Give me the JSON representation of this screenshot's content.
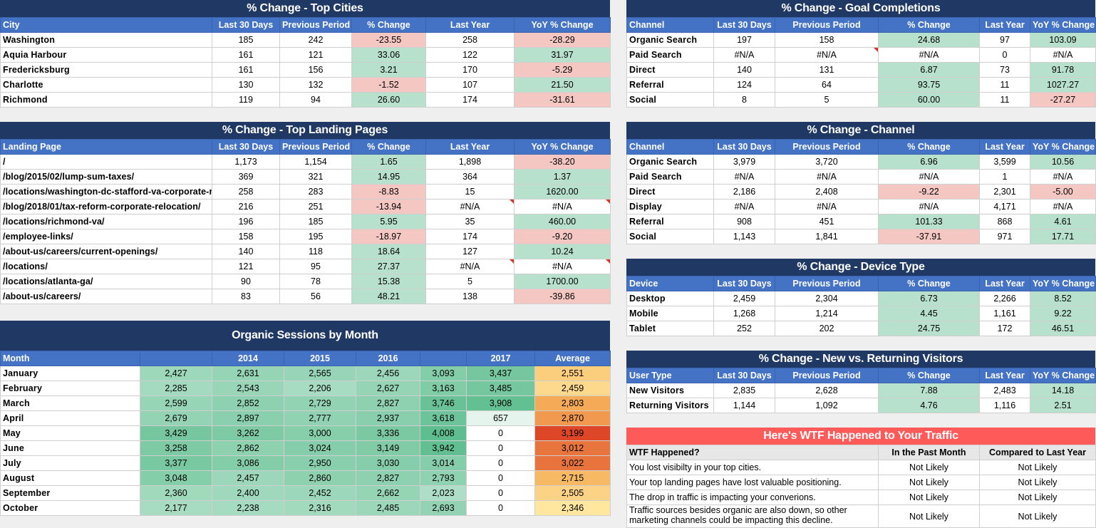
{
  "cities": {
    "title": "% Change - Top Cities",
    "headers": [
      "City",
      "Last 30 Days",
      "Previous Period",
      "% Change",
      "Last Year",
      "YoY % Change"
    ],
    "rows": [
      [
        "Washington",
        "185",
        "242",
        "-23.55",
        "258",
        "-28.29"
      ],
      [
        "Aquia Harbour",
        "161",
        "121",
        "33.06",
        "122",
        "31.97"
      ],
      [
        "Fredericksburg",
        "161",
        "156",
        "3.21",
        "170",
        "-5.29"
      ],
      [
        "Charlotte",
        "130",
        "132",
        "-1.52",
        "107",
        "21.50"
      ],
      [
        "Richmond",
        "119",
        "94",
        "26.60",
        "174",
        "-31.61"
      ]
    ]
  },
  "landing": {
    "title": "% Change - Top Landing Pages",
    "headers": [
      "Landing Page",
      "Last 30 Days",
      "Previous Period",
      "% Change",
      "Last Year",
      "YoY % Change"
    ],
    "rows": [
      [
        "/",
        "1,173",
        "1,154",
        "1.65",
        "1,898",
        "-38.20"
      ],
      [
        "/blog/2015/02/lump-sum-taxes/",
        "369",
        "321",
        "14.95",
        "364",
        "1.37"
      ],
      [
        "/locations/washington-dc-stafford-va-corporate-relocation/",
        "258",
        "283",
        "-8.83",
        "15",
        "1620.00"
      ],
      [
        "/blog/2018/01/tax-reform-corporate-relocation/",
        "216",
        "251",
        "-13.94",
        "#N/A",
        "#N/A"
      ],
      [
        "/locations/richmond-va/",
        "196",
        "185",
        "5.95",
        "35",
        "460.00"
      ],
      [
        "/employee-links/",
        "158",
        "195",
        "-18.97",
        "174",
        "-9.20"
      ],
      [
        "/about-us/careers/current-openings/",
        "140",
        "118",
        "18.64",
        "127",
        "10.24"
      ],
      [
        "/locations/",
        "121",
        "95",
        "27.37",
        "#N/A",
        "#N/A"
      ],
      [
        "/locations/atlanta-ga/",
        "90",
        "78",
        "15.38",
        "5",
        "1700.00"
      ],
      [
        "/about-us/careers/",
        "83",
        "56",
        "48.21",
        "138",
        "-39.86"
      ]
    ]
  },
  "sessions": {
    "title": "Organic Sessions by Month",
    "headers": [
      "Month",
      "",
      "2014",
      "2015",
      "2016",
      "",
      "2017",
      "Average"
    ],
    "rows": [
      [
        "January",
        "2,427",
        "2,631",
        "2,565",
        "2,456",
        "3,093",
        "3,437",
        "2,551"
      ],
      [
        "February",
        "2,285",
        "2,543",
        "2,206",
        "2,627",
        "3,163",
        "3,485",
        "2,459"
      ],
      [
        "March",
        "2,599",
        "2,852",
        "2,729",
        "2,827",
        "3,746",
        "3,908",
        "2,803"
      ],
      [
        "April",
        "2,679",
        "2,897",
        "2,777",
        "2,937",
        "3,618",
        "657",
        "2,870"
      ],
      [
        "May",
        "3,429",
        "3,262",
        "3,000",
        "3,336",
        "4,008",
        "0",
        "3,199"
      ],
      [
        "June",
        "3,258",
        "2,862",
        "3,024",
        "3,149",
        "3,942",
        "0",
        "3,012"
      ],
      [
        "July",
        "3,377",
        "3,086",
        "2,950",
        "3,030",
        "3,014",
        "0",
        "3,022"
      ],
      [
        "August",
        "3,048",
        "2,457",
        "2,860",
        "2,827",
        "2,793",
        "0",
        "2,715"
      ],
      [
        "September",
        "2,360",
        "2,400",
        "2,452",
        "2,662",
        "2,023",
        "0",
        "2,505"
      ],
      [
        "October",
        "2,177",
        "2,238",
        "2,316",
        "2,485",
        "2,693",
        "0",
        "2,346"
      ]
    ]
  },
  "goals": {
    "title": "% Change - Goal Completions",
    "headers": [
      "Channel",
      "Last 30 Days",
      "Previous Period",
      "% Change",
      "Last Year",
      "YoY % Change"
    ],
    "rows": [
      [
        "Organic Search",
        "197",
        "158",
        "24.68",
        "97",
        "103.09"
      ],
      [
        "Paid Search",
        "#N/A",
        "#N/A",
        "#N/A",
        "0",
        "#N/A"
      ],
      [
        "Direct",
        "140",
        "131",
        "6.87",
        "73",
        "91.78"
      ],
      [
        "Referral",
        "124",
        "64",
        "93.75",
        "11",
        "1027.27"
      ],
      [
        "Social",
        "8",
        "5",
        "60.00",
        "11",
        "-27.27"
      ]
    ]
  },
  "channel": {
    "title": "% Change - Channel",
    "headers": [
      "Channel",
      "Last 30 Days",
      "Previous Period",
      "% Change",
      "Last Year",
      "YoY % Change"
    ],
    "rows": [
      [
        "Organic Search",
        "3,979",
        "3,720",
        "6.96",
        "3,599",
        "10.56"
      ],
      [
        "Paid Search",
        "#N/A",
        "#N/A",
        "#N/A",
        "1",
        "#N/A"
      ],
      [
        "Direct",
        "2,186",
        "2,408",
        "-9.22",
        "2,301",
        "-5.00"
      ],
      [
        "Display",
        "#N/A",
        "#N/A",
        "#N/A",
        "4,171",
        "#N/A"
      ],
      [
        "Referral",
        "908",
        "451",
        "101.33",
        "868",
        "4.61"
      ],
      [
        "Social",
        "1,143",
        "1,841",
        "-37.91",
        "971",
        "17.71"
      ]
    ]
  },
  "device": {
    "title": "% Change - Device Type",
    "headers": [
      "Device",
      "Last 30 Days",
      "Previous Period",
      "% Change",
      "Last Year",
      "YoY % Change"
    ],
    "rows": [
      [
        "Desktop",
        "2,459",
        "2,304",
        "6.73",
        "2,266",
        "8.52"
      ],
      [
        "Mobile",
        "1,268",
        "1,214",
        "4.45",
        "1,161",
        "9.22"
      ],
      [
        "Tablet",
        "252",
        "202",
        "24.75",
        "172",
        "46.51"
      ]
    ]
  },
  "visitors": {
    "title": "% Change - New vs. Returning Visitors",
    "headers": [
      "User Type",
      "Last 30 Days",
      "Previous Period",
      "% Change",
      "Last Year",
      "YoY % Change"
    ],
    "rows": [
      [
        "New Visitors",
        "2,835",
        "2,628",
        "7.88",
        "2,483",
        "14.18"
      ],
      [
        "Returning Visitors",
        "1,144",
        "1,092",
        "4.76",
        "1,116",
        "2.51"
      ]
    ]
  },
  "wtf": {
    "title": "Here's WTF Happened to Your Traffic",
    "headers": [
      "WTF Happened?",
      "In the Past Month",
      "Compared to Last Year"
    ],
    "rows": [
      [
        "You lost visibilty in your top cities.",
        "Not Likely",
        "Not Likely"
      ],
      [
        "Your top landing pages have lost valuable positioning.",
        "Not Likely",
        "Not Likely"
      ],
      [
        "The drop in traffic is impacting your converions.",
        "Not Likely",
        "Not Likely"
      ],
      [
        "Traffic sources besides organic are also down, so other marketing channels could be impacting this decline.",
        "Not Likely",
        "Not Likely"
      ]
    ]
  },
  "colors": {
    "positive": "#b7e1cd",
    "negative": "#f4c7c3",
    "header": "#4472c4",
    "title": "#203864",
    "alert": "#ff5a5a"
  }
}
